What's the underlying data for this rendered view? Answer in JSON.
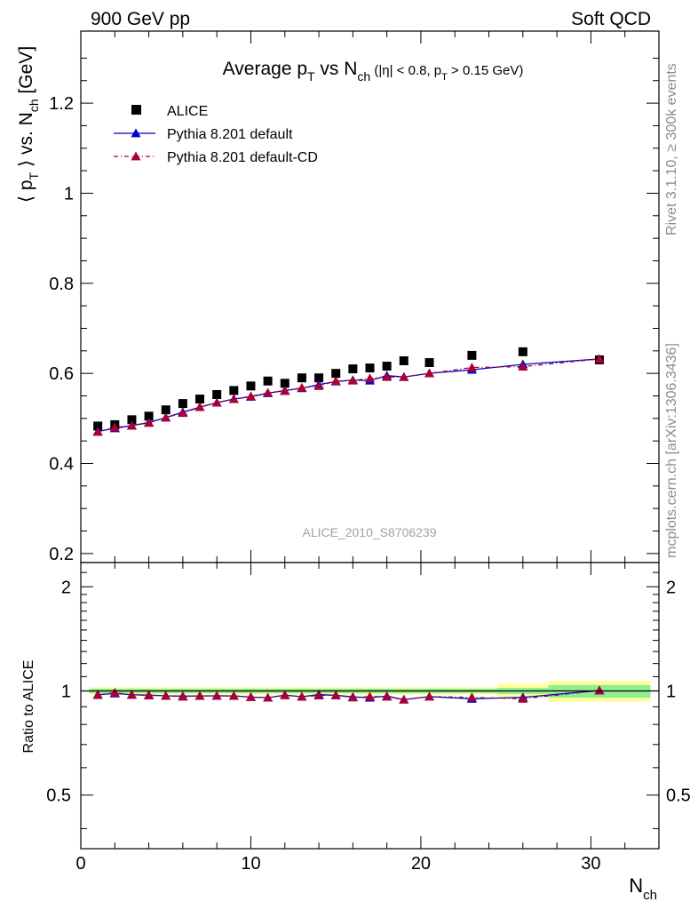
{
  "header": {
    "left": "900 GeV pp",
    "right": "Soft QCD"
  },
  "side": {
    "rivet": "Rivet 3.1.10, ≥ 300k events",
    "mcplots": "mcplots.cern.ch [arXiv:1306.3436]"
  },
  "main_title": {
    "t1": "Average p",
    "t1_sub": "T",
    "t2": " vs N",
    "t2_sub": "ch",
    "t3": " (|η| < 0.8, p",
    "t3_sub": "T",
    "t4": " > 0.15 GeV)"
  },
  "ylabel": {
    "a": "⟨ p",
    "a_sub": "T",
    "b": " ⟩ vs. N",
    "b_sub": "ch",
    "c": " [GeV]"
  },
  "ratio_ylabel": "Ratio to ALICE",
  "xlabel": {
    "main": "N",
    "sub": "ch"
  },
  "analysis_id": "ALICE_2010_S8706239",
  "legend": [
    {
      "label": "ALICE",
      "marker": "square",
      "color": "#000000"
    },
    {
      "label": "Pythia 8.201 default",
      "marker": "triangle",
      "color": "#0000cc",
      "line": "solid"
    },
    {
      "label": "Pythia 8.201 default-CD",
      "marker": "triangle",
      "color": "#aa0033",
      "line": "dashdot"
    }
  ],
  "colors": {
    "band_inner": "#90ee90",
    "band_outer": "#ffff99",
    "pythia_default": "#0000cc",
    "pythia_cd": "#aa0033",
    "data": "#000000"
  },
  "chart_data": {
    "type": "scatter",
    "xlim": [
      0,
      34
    ],
    "ylim": [
      0.18,
      1.36
    ],
    "ratio_ylim": [
      0.35,
      2.35
    ],
    "x_ticks": [
      0,
      10,
      20,
      30
    ],
    "x_tick_labels": [
      "0",
      "10",
      "20",
      "30"
    ],
    "y_ticks": [
      0.2,
      0.4,
      0.6,
      0.8,
      1,
      1.2
    ],
    "y_tick_labels": [
      "0.2",
      "0.4",
      "0.6",
      "0.8",
      "1",
      "1.2"
    ],
    "ratio_y_ticks": [
      0.5,
      1,
      2
    ],
    "ratio_y_tick_labels": [
      "0.5",
      "1",
      "2"
    ],
    "series": [
      {
        "name": "ALICE",
        "x": [
          1,
          2,
          3,
          4,
          5,
          6,
          7,
          8,
          9,
          10,
          11,
          12,
          13,
          14,
          15,
          16,
          17,
          18,
          19,
          20.5,
          23,
          26,
          30.5
        ],
        "y": [
          0.483,
          0.486,
          0.497,
          0.505,
          0.519,
          0.533,
          0.543,
          0.553,
          0.562,
          0.572,
          0.583,
          0.578,
          0.59,
          0.59,
          0.6,
          0.61,
          0.612,
          0.616,
          0.628,
          0.624,
          0.64,
          0.648,
          0.63
        ]
      },
      {
        "name": "Pythia 8.201 default",
        "x": [
          1,
          2,
          3,
          4,
          5,
          6,
          7,
          8,
          9,
          10,
          11,
          12,
          13,
          14,
          15,
          16,
          17,
          18,
          19,
          20.5,
          23,
          26,
          30.5
        ],
        "y": [
          0.471,
          0.478,
          0.484,
          0.491,
          0.502,
          0.514,
          0.525,
          0.535,
          0.543,
          0.548,
          0.556,
          0.562,
          0.567,
          0.575,
          0.582,
          0.585,
          0.584,
          0.595,
          0.592,
          0.6,
          0.608,
          0.62,
          0.632
        ]
      },
      {
        "name": "Pythia 8.201 default-CD",
        "x": [
          1,
          2,
          3,
          4,
          5,
          6,
          7,
          8,
          9,
          10,
          11,
          12,
          13,
          14,
          15,
          16,
          17,
          18,
          19,
          20.5,
          23,
          26,
          30.5
        ],
        "y": [
          0.47,
          0.48,
          0.484,
          0.49,
          0.502,
          0.512,
          0.525,
          0.535,
          0.543,
          0.549,
          0.557,
          0.561,
          0.568,
          0.572,
          0.583,
          0.584,
          0.589,
          0.592,
          0.592,
          0.6,
          0.613,
          0.615,
          0.632
        ]
      }
    ],
    "ratio_series": [
      {
        "name": "Pythia 8.201 default",
        "x": [
          1,
          2,
          3,
          4,
          5,
          6,
          7,
          8,
          9,
          10,
          11,
          12,
          13,
          14,
          15,
          16,
          17,
          18,
          19,
          20.5,
          23,
          26,
          30.5
        ],
        "y": [
          0.975,
          0.983,
          0.975,
          0.973,
          0.968,
          0.966,
          0.967,
          0.968,
          0.967,
          0.96,
          0.956,
          0.973,
          0.962,
          0.976,
          0.971,
          0.961,
          0.956,
          0.966,
          0.944,
          0.963,
          0.949,
          0.958,
          1.003
        ]
      },
      {
        "name": "Pythia 8.201 default-CD",
        "x": [
          1,
          2,
          3,
          4,
          5,
          6,
          7,
          8,
          9,
          10,
          11,
          12,
          13,
          14,
          15,
          16,
          17,
          18,
          19,
          20.5,
          23,
          26,
          30.5
        ],
        "y": [
          0.973,
          0.988,
          0.974,
          0.97,
          0.968,
          0.962,
          0.967,
          0.968,
          0.967,
          0.96,
          0.956,
          0.971,
          0.962,
          0.97,
          0.972,
          0.957,
          0.963,
          0.962,
          0.944,
          0.963,
          0.958,
          0.949,
          1.003
        ]
      }
    ],
    "uncertainty_bands": {
      "x_edges": [
        0.5,
        24.5,
        27.5,
        33.5
      ],
      "inner": [
        0.985,
        1.015,
        0.98,
        1.02,
        0.955,
        1.04
      ],
      "outer": [
        0.975,
        1.025,
        0.96,
        1.05,
        0.93,
        1.07
      ]
    }
  }
}
